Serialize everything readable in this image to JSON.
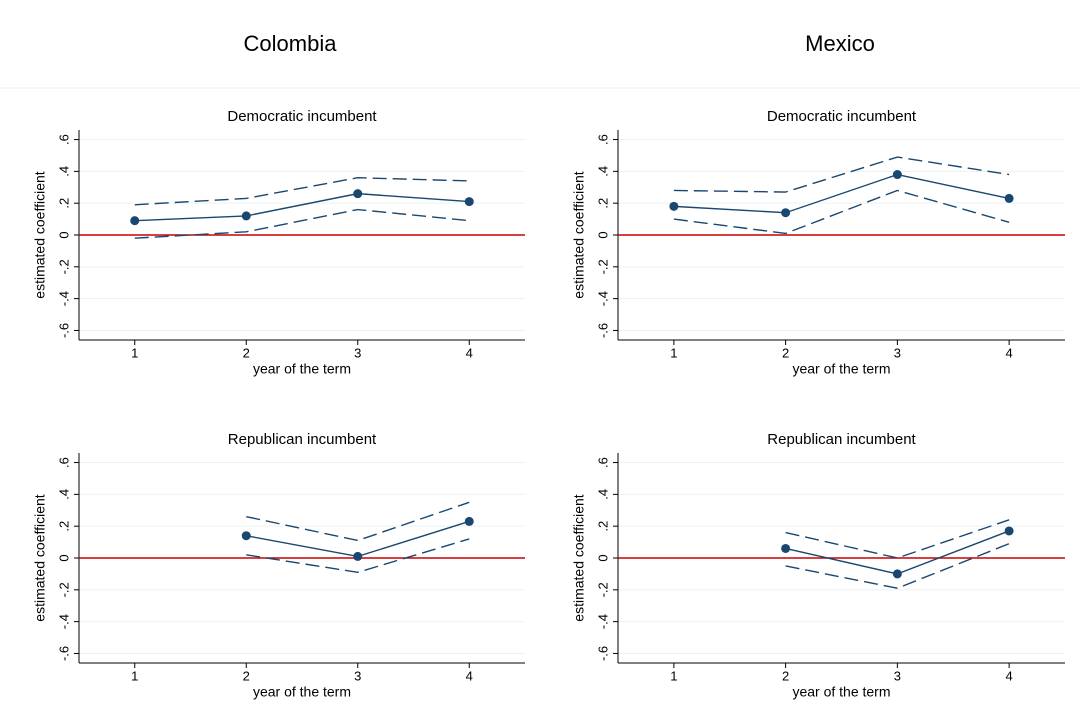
{
  "columns": [
    "Colombia",
    "Mexico"
  ],
  "chart_data": [
    {
      "type": "line",
      "title": "Democratic incumbent",
      "xlabel": "year of the term",
      "ylabel": "estimated coefficient",
      "x": [
        1,
        2,
        3,
        4
      ],
      "xlim": [
        0.5,
        4.5
      ],
      "xticks": [
        1,
        2,
        3,
        4
      ],
      "ylim": [
        -0.66,
        0.66
      ],
      "yticks": [
        {
          "value": -0.6,
          "label": "-.6"
        },
        {
          "value": -0.4,
          "label": "-.4"
        },
        {
          "value": -0.2,
          "label": "-.2"
        },
        0,
        {
          "value": 0.2,
          "label": ".2"
        },
        {
          "value": 0.4,
          "label": ".4"
        },
        {
          "value": 0.6,
          "label": ".6"
        }
      ],
      "grid": true,
      "hline": {
        "value": 0,
        "color": "#cc0000"
      },
      "series": [
        {
          "color": "#1a476f",
          "dash": false,
          "markers": true,
          "values": [
            0.09,
            0.12,
            0.26,
            0.21
          ]
        },
        {
          "color": "#1a476f",
          "dash": true,
          "markers": false,
          "values": [
            0.19,
            0.23,
            0.36,
            0.34
          ]
        },
        {
          "color": "#1a476f",
          "dash": true,
          "markers": false,
          "values": [
            -0.02,
            0.02,
            0.16,
            0.09
          ]
        }
      ]
    },
    {
      "type": "line",
      "title": "Democratic incumbent",
      "xlabel": "year of the term",
      "ylabel": "estimated coefficient",
      "x": [
        1,
        2,
        3,
        4
      ],
      "xlim": [
        0.5,
        4.5
      ],
      "xticks": [
        1,
        2,
        3,
        4
      ],
      "ylim": [
        -0.66,
        0.66
      ],
      "yticks": [
        {
          "value": -0.6,
          "label": "-.6"
        },
        {
          "value": -0.4,
          "label": "-.4"
        },
        {
          "value": -0.2,
          "label": "-.2"
        },
        0,
        {
          "value": 0.2,
          "label": ".2"
        },
        {
          "value": 0.4,
          "label": ".4"
        },
        {
          "value": 0.6,
          "label": ".6"
        }
      ],
      "grid": true,
      "hline": {
        "value": 0,
        "color": "#cc0000"
      },
      "series": [
        {
          "color": "#1a476f",
          "dash": false,
          "markers": true,
          "values": [
            0.18,
            0.14,
            0.38,
            0.23
          ]
        },
        {
          "color": "#1a476f",
          "dash": true,
          "markers": false,
          "values": [
            0.28,
            0.27,
            0.49,
            0.38
          ]
        },
        {
          "color": "#1a476f",
          "dash": true,
          "markers": false,
          "values": [
            0.1,
            0.01,
            0.28,
            0.08
          ]
        }
      ]
    },
    {
      "type": "line",
      "title": "Republican incumbent",
      "xlabel": "year of the term",
      "ylabel": "estimated coefficient",
      "x": [
        1,
        2,
        3,
        4
      ],
      "xlim": [
        0.5,
        4.5
      ],
      "xticks": [
        1,
        2,
        3,
        4
      ],
      "ylim": [
        -0.66,
        0.66
      ],
      "yticks": [
        {
          "value": -0.6,
          "label": "-.6"
        },
        {
          "value": -0.4,
          "label": "-.4"
        },
        {
          "value": -0.2,
          "label": "-.2"
        },
        0,
        {
          "value": 0.2,
          "label": ".2"
        },
        {
          "value": 0.4,
          "label": ".4"
        },
        {
          "value": 0.6,
          "label": ".6"
        }
      ],
      "grid": true,
      "hline": {
        "value": 0,
        "color": "#cc0000"
      },
      "series": [
        {
          "color": "#1a476f",
          "dash": false,
          "markers": true,
          "values": [
            null,
            0.14,
            0.01,
            0.23
          ]
        },
        {
          "color": "#1a476f",
          "dash": true,
          "markers": false,
          "values": [
            null,
            0.26,
            0.11,
            0.35
          ]
        },
        {
          "color": "#1a476f",
          "dash": true,
          "markers": false,
          "values": [
            null,
            0.02,
            -0.09,
            0.12
          ]
        }
      ]
    },
    {
      "type": "line",
      "title": "Republican incumbent",
      "xlabel": "year of the term",
      "ylabel": "estimated coefficient",
      "x": [
        1,
        2,
        3,
        4
      ],
      "xlim": [
        0.5,
        4.5
      ],
      "xticks": [
        1,
        2,
        3,
        4
      ],
      "ylim": [
        -0.66,
        0.66
      ],
      "yticks": [
        {
          "value": -0.6,
          "label": "-.6"
        },
        {
          "value": -0.4,
          "label": "-.4"
        },
        {
          "value": -0.2,
          "label": "-.2"
        },
        0,
        {
          "value": 0.2,
          "label": ".2"
        },
        {
          "value": 0.4,
          "label": ".4"
        },
        {
          "value": 0.6,
          "label": ".6"
        }
      ],
      "grid": true,
      "hline": {
        "value": 0,
        "color": "#cc0000"
      },
      "series": [
        {
          "color": "#1a476f",
          "dash": false,
          "markers": true,
          "values": [
            null,
            0.06,
            -0.1,
            0.17
          ]
        },
        {
          "color": "#1a476f",
          "dash": true,
          "markers": false,
          "values": [
            null,
            0.16,
            0.0,
            0.24
          ]
        },
        {
          "color": "#1a476f",
          "dash": true,
          "markers": false,
          "values": [
            null,
            -0.05,
            -0.19,
            0.09
          ]
        }
      ]
    }
  ]
}
